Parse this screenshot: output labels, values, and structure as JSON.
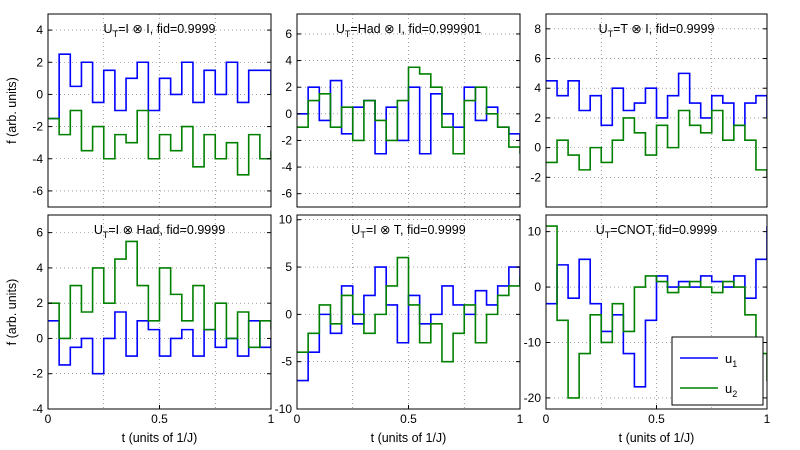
{
  "chart_data": [
    {
      "type": "line",
      "step": true,
      "title": {
        "main": "U",
        "sub": "T",
        "rest": "=I ⊗ I, fid=0.9999"
      },
      "ylabel": "f (arb. units)",
      "xlabel": "",
      "xlim": [
        0,
        1
      ],
      "ylim": [
        -7,
        5
      ],
      "yticks": [
        -6,
        -4,
        -2,
        0,
        2,
        4
      ],
      "xticks": [],
      "grid": true,
      "series": [
        {
          "color": "#0000ff",
          "x": [
            0,
            0.05,
            0.1,
            0.15,
            0.2,
            0.25,
            0.3,
            0.35,
            0.4,
            0.45,
            0.5,
            0.55,
            0.6,
            0.65,
            0.7,
            0.75,
            0.8,
            0.85,
            0.9,
            0.95,
            1
          ],
          "y": [
            -1.5,
            2.5,
            0.5,
            2,
            -0.5,
            1.5,
            -1,
            1,
            2,
            -1,
            1,
            0,
            2,
            -0.5,
            1.5,
            0,
            2,
            -0.5,
            1.5,
            1.5,
            0
          ]
        },
        {
          "color": "#008000",
          "x": [
            0,
            0.05,
            0.1,
            0.15,
            0.2,
            0.25,
            0.3,
            0.35,
            0.4,
            0.45,
            0.5,
            0.55,
            0.6,
            0.65,
            0.7,
            0.75,
            0.8,
            0.85,
            0.9,
            0.95,
            1
          ],
          "y": [
            -1.5,
            -2.5,
            -1,
            -3.5,
            -2,
            -4,
            -2.5,
            -3,
            -1,
            -4,
            -2.5,
            -3.5,
            -2,
            -4.5,
            -2.5,
            -4,
            -3,
            -5,
            -2.5,
            -4,
            -3.5
          ]
        }
      ]
    },
    {
      "type": "line",
      "step": true,
      "title": {
        "main": "U",
        "sub": "T",
        "rest": "=Had ⊗ I, fid=0.999901"
      },
      "ylabel": "",
      "xlabel": "",
      "xlim": [
        0,
        1
      ],
      "ylim": [
        -7,
        7.5
      ],
      "yticks": [
        -6,
        -4,
        -2,
        0,
        2,
        4,
        6
      ],
      "xticks": [],
      "grid": true,
      "series": [
        {
          "color": "#0000ff",
          "x": [
            0,
            0.05,
            0.1,
            0.15,
            0.2,
            0.25,
            0.3,
            0.35,
            0.4,
            0.45,
            0.5,
            0.55,
            0.6,
            0.65,
            0.7,
            0.75,
            0.8,
            0.85,
            0.9,
            0.95,
            1
          ],
          "y": [
            0,
            2,
            -0.5,
            2.5,
            -1.5,
            0.5,
            1,
            -3,
            0.5,
            -2,
            2,
            -3,
            1.5,
            0,
            -1,
            2,
            -0.5,
            0.5,
            -1,
            -1.5,
            -2
          ]
        },
        {
          "color": "#008000",
          "x": [
            0,
            0.05,
            0.1,
            0.15,
            0.2,
            0.25,
            0.3,
            0.35,
            0.4,
            0.45,
            0.5,
            0.55,
            0.6,
            0.65,
            0.7,
            0.75,
            0.8,
            0.85,
            0.9,
            0.95,
            1
          ],
          "y": [
            -1,
            1,
            1.5,
            -1,
            0.5,
            -2,
            1,
            -0.5,
            -2,
            1,
            3.5,
            3,
            2,
            -1,
            -3,
            1,
            2,
            0,
            -1,
            -2.5,
            -3
          ]
        }
      ]
    },
    {
      "type": "line",
      "step": true,
      "title": {
        "main": "U",
        "sub": "T",
        "rest": "=T ⊗ I, fid=0.9999"
      },
      "ylabel": "",
      "xlabel": "",
      "xlim": [
        0,
        1
      ],
      "ylim": [
        -4,
        9
      ],
      "yticks": [
        -2,
        0,
        2,
        4,
        6,
        8
      ],
      "xticks": [],
      "grid": true,
      "series": [
        {
          "color": "#0000ff",
          "x": [
            0,
            0.05,
            0.1,
            0.15,
            0.2,
            0.25,
            0.3,
            0.35,
            0.4,
            0.45,
            0.5,
            0.55,
            0.6,
            0.65,
            0.7,
            0.75,
            0.8,
            0.85,
            0.9,
            0.95,
            1
          ],
          "y": [
            4.5,
            3.5,
            4.5,
            2.5,
            3.5,
            1.5,
            4,
            2.5,
            3,
            4,
            2,
            3.5,
            5,
            3,
            2,
            3.5,
            3,
            1.5,
            3,
            3.5,
            2
          ]
        },
        {
          "color": "#008000",
          "x": [
            0,
            0.05,
            0.1,
            0.15,
            0.2,
            0.25,
            0.3,
            0.35,
            0.4,
            0.45,
            0.5,
            0.55,
            0.6,
            0.65,
            0.7,
            0.75,
            0.8,
            0.85,
            0.9,
            0.95,
            1
          ],
          "y": [
            -1,
            0.5,
            -0.5,
            -1.5,
            0,
            -1,
            0.5,
            2,
            1,
            -0.5,
            1.5,
            0,
            2.5,
            1.5,
            1,
            2.5,
            0.5,
            1.5,
            0.5,
            -1.5,
            -2
          ]
        }
      ]
    },
    {
      "type": "line",
      "step": true,
      "title": {
        "main": "U",
        "sub": "T",
        "rest": "=I ⊗ Had, fid=0.9999"
      },
      "ylabel": "f (arb. units)",
      "xlabel": "t (units of 1/J)",
      "xlim": [
        0,
        1
      ],
      "ylim": [
        -4,
        7
      ],
      "yticks": [
        -4,
        -2,
        0,
        2,
        4,
        6
      ],
      "xticks": [
        0,
        0.5,
        1
      ],
      "grid": true,
      "series": [
        {
          "color": "#0000ff",
          "x": [
            0,
            0.05,
            0.1,
            0.15,
            0.2,
            0.25,
            0.3,
            0.35,
            0.4,
            0.45,
            0.5,
            0.55,
            0.6,
            0.65,
            0.7,
            0.75,
            0.8,
            0.85,
            0.9,
            0.95,
            1
          ],
          "y": [
            1,
            -1.5,
            -0.5,
            0,
            -2,
            0,
            1.5,
            -1,
            1,
            0.5,
            -1,
            0,
            0.5,
            -1,
            0.5,
            -0.5,
            0,
            -1,
            1,
            -0.5,
            0
          ]
        },
        {
          "color": "#008000",
          "x": [
            0,
            0.05,
            0.1,
            0.15,
            0.2,
            0.25,
            0.3,
            0.35,
            0.4,
            0.45,
            0.5,
            0.55,
            0.6,
            0.65,
            0.7,
            0.75,
            0.8,
            0.85,
            0.9,
            0.95,
            1
          ],
          "y": [
            2,
            0,
            3,
            1.5,
            4,
            2,
            4.5,
            5.5,
            3,
            1,
            4,
            2.5,
            1,
            3,
            0.5,
            2,
            0,
            1.5,
            -0.5,
            1,
            0.5
          ]
        }
      ]
    },
    {
      "type": "line",
      "step": true,
      "title": {
        "main": "U",
        "sub": "T",
        "rest": "=I ⊗ T, fid=0.9999"
      },
      "ylabel": "",
      "xlabel": "t (units of 1/J)",
      "xlim": [
        0,
        1
      ],
      "ylim": [
        -10,
        10.5
      ],
      "yticks": [
        -10,
        -5,
        0,
        5,
        10
      ],
      "xticks": [
        0,
        0.5,
        1
      ],
      "grid": true,
      "series": [
        {
          "color": "#0000ff",
          "x": [
            0,
            0.05,
            0.1,
            0.15,
            0.2,
            0.25,
            0.3,
            0.35,
            0.4,
            0.45,
            0.5,
            0.55,
            0.6,
            0.65,
            0.7,
            0.75,
            0.8,
            0.85,
            0.9,
            0.95,
            1
          ],
          "y": [
            -7,
            -4,
            0,
            -2,
            3,
            -1,
            2,
            5,
            1,
            -3,
            2,
            -1,
            0,
            3,
            1,
            0,
            2.5,
            1,
            3,
            5,
            3
          ]
        },
        {
          "color": "#008000",
          "x": [
            0,
            0.05,
            0.1,
            0.15,
            0.2,
            0.25,
            0.3,
            0.35,
            0.4,
            0.45,
            0.5,
            0.55,
            0.6,
            0.65,
            0.7,
            0.75,
            0.8,
            0.85,
            0.9,
            0.95,
            1
          ],
          "y": [
            -4,
            -2,
            1,
            -1,
            2,
            0,
            -2,
            0,
            3,
            6,
            1,
            -3,
            -1,
            -5,
            -2,
            1,
            -3,
            0,
            2,
            3,
            4
          ]
        }
      ]
    },
    {
      "type": "line",
      "step": true,
      "title": {
        "main": "U",
        "sub": "T",
        "rest": "=CNOT, fid=0.9999"
      },
      "ylabel": "",
      "xlabel": "t (units of 1/J)",
      "xlim": [
        0,
        1
      ],
      "ylim": [
        -22,
        13
      ],
      "yticks": [
        -20,
        -10,
        0,
        10
      ],
      "xticks": [
        0,
        0.5,
        1
      ],
      "grid": true,
      "legend": {
        "position": "lower-right",
        "entries": [
          {
            "main": "u",
            "sub": "1",
            "color": "#0000ff"
          },
          {
            "main": "u",
            "sub": "2",
            "color": "#008000"
          }
        ]
      },
      "series": [
        {
          "color": "#0000ff",
          "x": [
            0,
            0.05,
            0.1,
            0.15,
            0.2,
            0.25,
            0.3,
            0.35,
            0.4,
            0.45,
            0.5,
            0.55,
            0.6,
            0.65,
            0.7,
            0.75,
            0.8,
            0.85,
            0.9,
            0.95,
            1
          ],
          "y": [
            -3,
            4,
            -2,
            5,
            -3,
            -8,
            -5,
            -12,
            -18,
            -6,
            2,
            0,
            1,
            0,
            2,
            1,
            0,
            2,
            -2,
            5,
            11
          ]
        },
        {
          "color": "#008000",
          "x": [
            0,
            0.05,
            0.1,
            0.15,
            0.2,
            0.25,
            0.3,
            0.35,
            0.4,
            0.45,
            0.5,
            0.55,
            0.6,
            0.65,
            0.7,
            0.75,
            0.8,
            0.85,
            0.9,
            0.95,
            1
          ],
          "y": [
            11,
            -6,
            -20,
            -12,
            -5,
            -10,
            -3,
            -8,
            0,
            2,
            1,
            -1,
            0,
            1,
            0,
            -1,
            1,
            0,
            -5,
            -12,
            -17
          ]
        }
      ]
    }
  ]
}
